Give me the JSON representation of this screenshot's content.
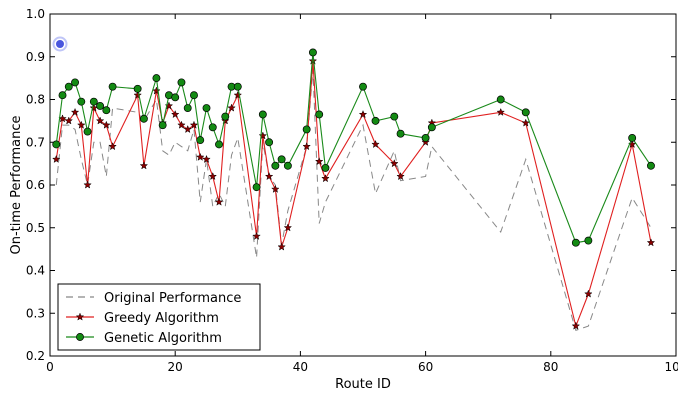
{
  "chart_data": {
    "type": "line",
    "title": "",
    "xlabel": "Route ID",
    "ylabel": "On-time Performance",
    "xlim": [
      0,
      100
    ],
    "ylim": [
      0.2,
      1.0
    ],
    "xticks": [
      "0",
      "20",
      "40",
      "60",
      "80",
      "100"
    ],
    "yticks": [
      "0.2",
      "0.3",
      "0.4",
      "0.5",
      "0.6",
      "0.7",
      "0.8",
      "0.9",
      "1.0"
    ],
    "grid": false,
    "legend_position": "lower-left",
    "x": [
      1,
      2,
      3,
      4,
      5,
      6,
      7,
      8,
      9,
      10,
      14,
      15,
      17,
      18,
      19,
      20,
      21,
      22,
      23,
      24,
      25,
      26,
      27,
      28,
      29,
      30,
      33,
      34,
      35,
      36,
      37,
      38,
      41,
      42,
      43,
      44,
      50,
      52,
      55,
      56,
      60,
      61,
      72,
      76,
      84,
      86,
      93,
      96
    ],
    "series": [
      {
        "name": "Original Performance",
        "style": "dashed",
        "color": "#888888",
        "values": [
          0.6,
          0.74,
          0.74,
          0.73,
          0.66,
          0.6,
          0.7,
          0.7,
          0.62,
          0.78,
          0.77,
          0.75,
          0.8,
          0.68,
          0.67,
          0.7,
          0.69,
          0.68,
          0.73,
          0.56,
          0.66,
          0.55,
          0.58,
          0.55,
          0.67,
          0.71,
          0.43,
          0.7,
          0.62,
          0.6,
          0.46,
          0.54,
          0.69,
          0.87,
          0.51,
          0.56,
          0.74,
          0.58,
          0.68,
          0.61,
          0.62,
          0.69,
          0.49,
          0.66,
          0.26,
          0.27,
          0.57,
          0.5
        ]
      },
      {
        "name": "Greedy Algorithm",
        "style": "solid-star",
        "color": "#e02020",
        "values": [
          0.66,
          0.755,
          0.75,
          0.77,
          0.74,
          0.6,
          0.78,
          0.75,
          0.74,
          0.69,
          0.81,
          0.645,
          0.82,
          0.745,
          0.785,
          0.765,
          0.74,
          0.73,
          0.74,
          0.665,
          0.66,
          0.62,
          0.56,
          0.75,
          0.78,
          0.81,
          0.48,
          0.715,
          0.62,
          0.59,
          0.455,
          0.5,
          0.69,
          0.89,
          0.655,
          0.615,
          0.765,
          0.695,
          0.65,
          0.62,
          0.7,
          0.745,
          0.77,
          0.745,
          0.27,
          0.345,
          0.695,
          0.465
        ]
      },
      {
        "name": "Genetic Algorithm",
        "style": "solid-circle",
        "color": "#1a8a1a",
        "values": [
          0.695,
          0.81,
          0.83,
          0.84,
          0.795,
          0.725,
          0.795,
          0.785,
          0.775,
          0.83,
          0.825,
          0.755,
          0.85,
          0.74,
          0.81,
          0.805,
          0.84,
          0.78,
          0.81,
          0.705,
          0.78,
          0.735,
          0.695,
          0.76,
          0.83,
          0.83,
          0.595,
          0.765,
          0.7,
          0.645,
          0.66,
          0.645,
          0.73,
          0.91,
          0.765,
          0.64,
          0.83,
          0.75,
          0.76,
          0.72,
          0.71,
          0.735,
          0.8,
          0.77,
          0.465,
          0.47,
          0.71,
          0.645
        ]
      }
    ]
  }
}
